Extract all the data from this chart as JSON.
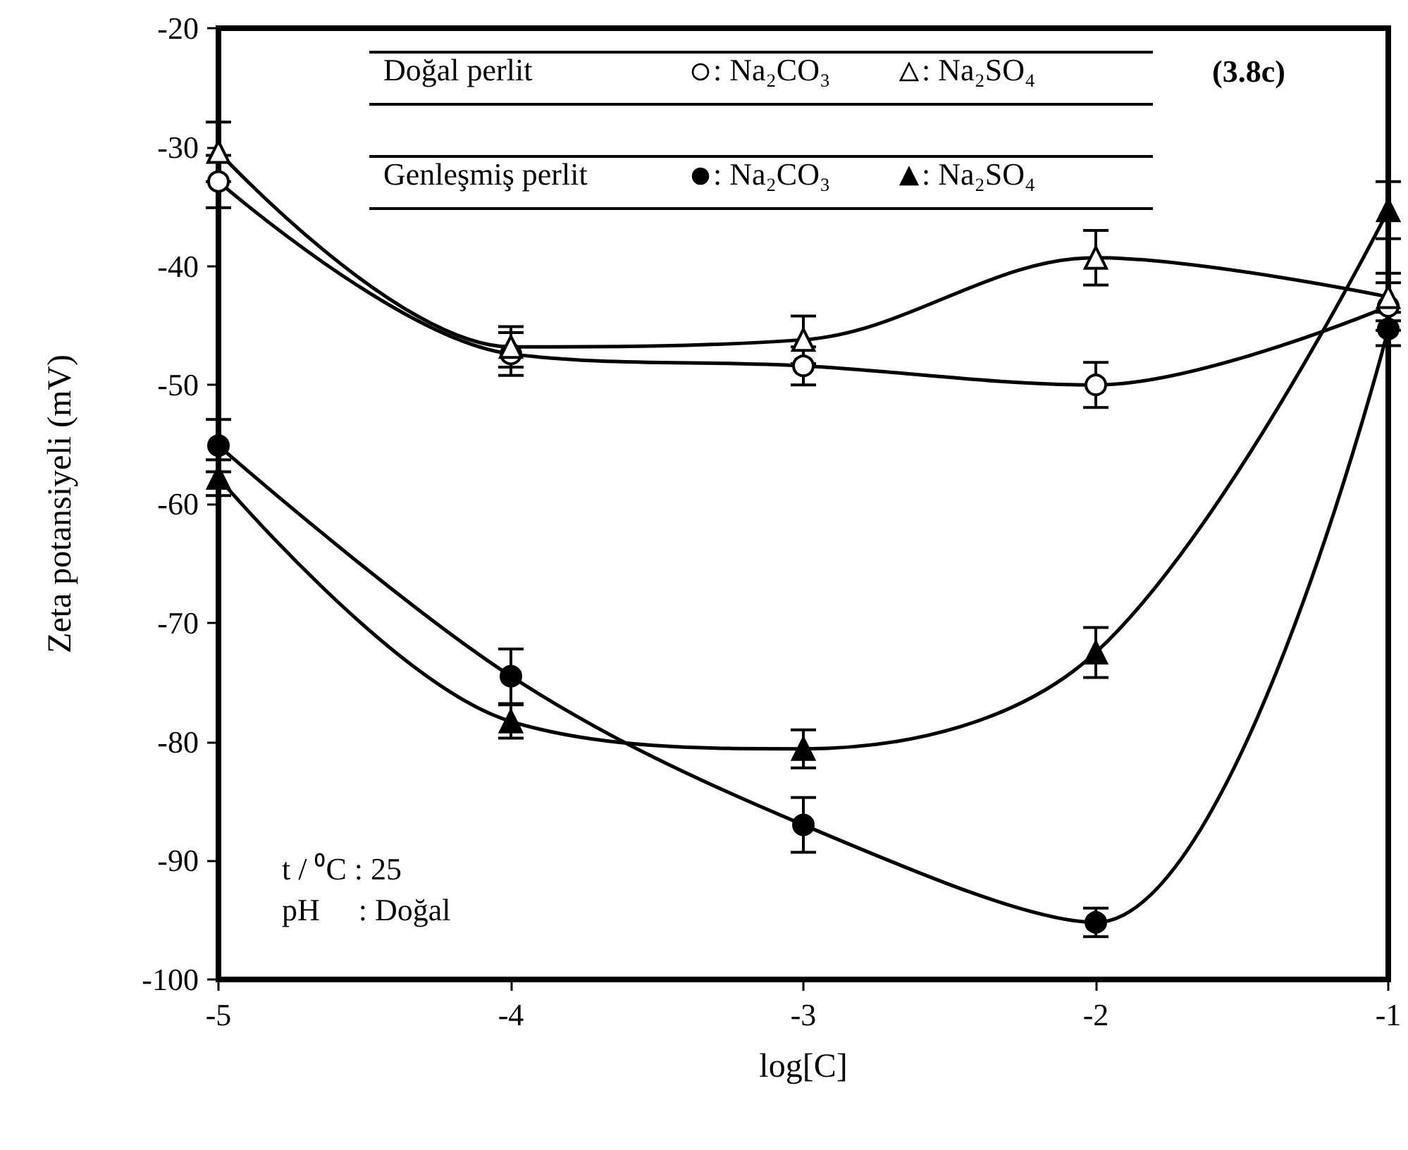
{
  "chart_data": {
    "type": "line",
    "xlabel": "log[C]",
    "ylabel": "Zeta potansiyeli (mV)",
    "x": [
      -5,
      -4,
      -3,
      -2,
      -1
    ],
    "xlim": [
      -5,
      -1
    ],
    "xticks": [
      -5,
      -4,
      -3,
      -2,
      -1
    ],
    "ylim": [
      -100,
      -20
    ],
    "yticks": [
      -100,
      -90,
      -80,
      -70,
      -60,
      -50,
      -40,
      -30,
      -20
    ],
    "grid": false,
    "legend": "top",
    "line_style": "solid",
    "series": [
      {
        "name": ": Na₂CO₃",
        "color": "#000000",
        "marker": "circle",
        "colors": [
          "#ffffff",
          "#ffffff",
          "#ffffff",
          "#ffffff",
          "#ffffff"
        ],
        "values": [
          -32.9,
          -47.4,
          -48.4,
          -50.0,
          -43.4
        ],
        "errors": [
          2.2,
          1.8,
          1.6,
          1.9,
          2
        ]
      },
      {
        "name": ": Na₂SO₄",
        "color": "#000000",
        "marker": "triangle",
        "colors": [
          "#ffffff",
          "#ffffff",
          "#ffffff",
          "#ffffff",
          "#ffffff"
        ],
        "values": [
          -30.4,
          -46.8,
          -46.2,
          -39.3,
          -42.6
        ],
        "errors": [
          2.5,
          1.7,
          2,
          2.3,
          2
        ]
      },
      {
        "name": ": Na₂CO₃",
        "color": "#000000",
        "marker": "circle",
        "values": [
          -55.1,
          -74.5,
          -87.0,
          -95.2,
          -45.3
        ],
        "errors": [
          2.2,
          2.3,
          2.3,
          1.2,
          1.4
        ]
      },
      {
        "name": ": Na₂SO₄",
        "color": "#000000",
        "marker": "triangle",
        "values": [
          -57.8,
          -78.3,
          -80.6,
          -72.5,
          -35.3
        ],
        "errors": [
          1.5,
          1.4,
          1.6,
          2.1,
          2.4
        ]
      }
    ],
    "annotations": [
      "Doğal perlit",
      "Genleşmiş perlit",
      "(3.8c)",
      "t / ⁰C : 25",
      "pH     : Doğal"
    ]
  }
}
